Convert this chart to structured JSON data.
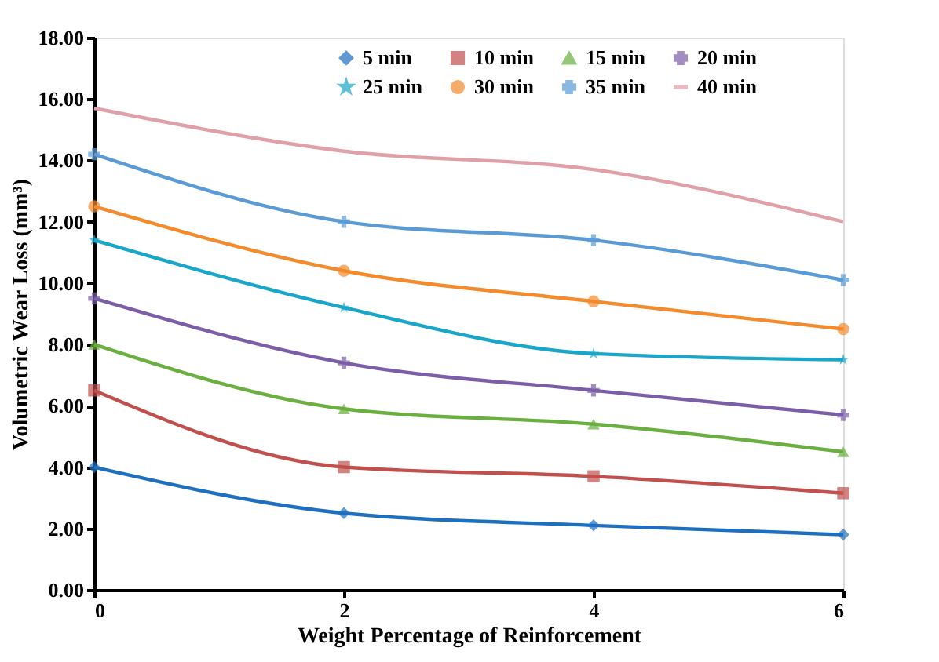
{
  "chart_data": {
    "type": "line",
    "xlabel": "Weight Percentage of Reinforcement",
    "ylabel": "Volumetric Wear Loss (mm³)",
    "x": [
      0,
      2,
      4,
      6
    ],
    "xlim": [
      0,
      6
    ],
    "xticks": [
      0,
      2,
      4,
      6
    ],
    "ylim": [
      0,
      18
    ],
    "yticks": [
      {
        "value": 0,
        "label": "0.00"
      },
      {
        "value": 2,
        "label": "2.00"
      },
      {
        "value": 4,
        "label": "4.00"
      },
      {
        "value": 6,
        "label": "6.00"
      },
      {
        "value": 8,
        "label": "8.00"
      },
      {
        "value": 10,
        "label": "10.00"
      },
      {
        "value": 12,
        "label": "12.00"
      },
      {
        "value": 14,
        "label": "14.00"
      },
      {
        "value": 16,
        "label": "16.00"
      },
      {
        "value": 18,
        "label": "18.00"
      }
    ],
    "grid": false,
    "legend": "top right",
    "series": [
      {
        "name": "5 min",
        "color": "#1f6fc0",
        "marker": "diamond",
        "values": [
          4.0,
          2.5,
          2.1,
          1.8
        ]
      },
      {
        "name": "10 min",
        "color": "#c0504d",
        "marker": "square",
        "values": [
          6.5,
          4.0,
          3.7,
          3.15
        ]
      },
      {
        "name": "15 min",
        "color": "#6aaf3f",
        "marker": "triangle",
        "values": [
          8.0,
          5.9,
          5.4,
          4.5
        ]
      },
      {
        "name": "20 min",
        "color": "#7b5ea7",
        "marker": "cross",
        "values": [
          9.5,
          7.4,
          6.5,
          5.7
        ]
      },
      {
        "name": "25 min",
        "color": "#1aa6c8",
        "marker": "star",
        "values": [
          11.4,
          9.2,
          7.7,
          7.5
        ]
      },
      {
        "name": "30 min",
        "color": "#f38a2c",
        "marker": "circle",
        "values": [
          12.5,
          10.4,
          9.4,
          8.5
        ]
      },
      {
        "name": "35 min",
        "color": "#5b9bd5",
        "marker": "cross",
        "values": [
          14.2,
          12.0,
          11.4,
          10.1
        ]
      },
      {
        "name": "40 min",
        "color": "#e0a0a8",
        "marker": "none",
        "values": [
          15.7,
          14.3,
          13.7,
          12.0
        ]
      }
    ]
  }
}
